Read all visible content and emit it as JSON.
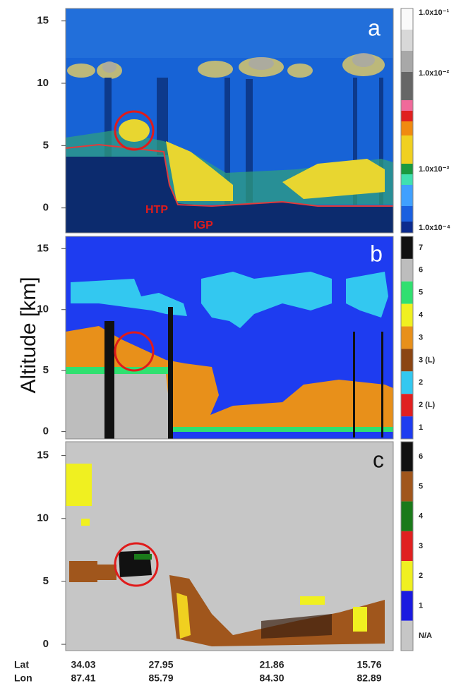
{
  "y_axis_label": "Altitude [km]",
  "panels": [
    {
      "letter": "a",
      "ylim": [
        -2,
        16
      ],
      "yticks": [
        0,
        5,
        10,
        15
      ],
      "colorbar_labels": [
        "1.0x10⁻¹",
        "1.0x10⁻²",
        "1.0x10⁻³",
        "1.0x10⁻⁴"
      ],
      "annotations": [
        "HTP",
        "IGP"
      ]
    },
    {
      "letter": "b",
      "ylim": [
        -0.6,
        16
      ],
      "yticks": [
        0,
        5,
        10,
        15
      ],
      "legend": [
        "7",
        "6",
        "5",
        "4",
        "3",
        "3 (L)",
        "2",
        "2 (L)",
        "1"
      ]
    },
    {
      "letter": "c",
      "ylim": [
        -0.5,
        16.1
      ],
      "yticks": [
        0,
        5,
        10,
        15
      ],
      "legend": [
        "6",
        "5",
        "4",
        "3",
        "2",
        "1",
        "N/A"
      ]
    }
  ],
  "footer": {
    "lat_label": "Lat",
    "lon_label": "Lon",
    "lat": [
      "34.03",
      "27.95",
      "21.86",
      "15.76"
    ],
    "lon": [
      "87.41",
      "85.79",
      "84.30",
      "82.89"
    ]
  }
}
